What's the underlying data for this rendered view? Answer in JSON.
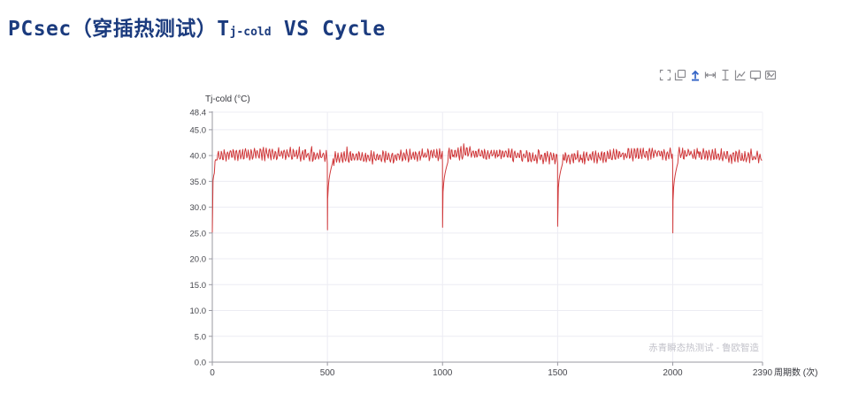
{
  "title": {
    "prefix": "PCsec（穿插热测试）T",
    "subscript": "j-cold",
    "suffix": " VS Cycle",
    "color": "#1b3b7e"
  },
  "toolbar": {
    "icon_color": "#8b8b90",
    "active_color": "#3565c6",
    "icons": [
      {
        "name": "box-select"
      },
      {
        "name": "copy"
      },
      {
        "name": "restore-upload"
      },
      {
        "name": "measure-width"
      },
      {
        "name": "measure-height"
      },
      {
        "name": "line-chart"
      },
      {
        "name": "annotation-box"
      },
      {
        "name": "save-image"
      }
    ]
  },
  "chart_data": {
    "type": "line",
    "title": "",
    "ylabel": "Tj-cold (°C)",
    "xlabel": "周期数 (次)",
    "watermark": "赤青瞬态热测试 - 鲁欧智造",
    "xlim": [
      0,
      2390
    ],
    "ylim": [
      0,
      48.4
    ],
    "x_ticks": [
      0,
      500,
      1000,
      1500,
      2000,
      2390
    ],
    "y_ticks": [
      0,
      5,
      10,
      15,
      20,
      25,
      30,
      35,
      40,
      45,
      48.4
    ],
    "y_tick_labels": [
      "0.0",
      "5.0",
      "10.0",
      "15.0",
      "20.0",
      "25.0",
      "30.0",
      "35.0",
      "40.0",
      "45.0",
      "48.4"
    ],
    "grid": true,
    "legend": false,
    "colors": {
      "grid": "#ececf3",
      "grid_faint": "#f2f2f7",
      "axis": "#9a9aa2",
      "line": "#d0393b"
    },
    "series": [
      {
        "name": "Tj-cold",
        "color": "#d0393b",
        "baseline": 40.0,
        "band": [
          37.9,
          42.3
        ],
        "osc_period": 13,
        "start_value": 25.1,
        "end_x": 2390,
        "seed": 20240613,
        "dips": [
          {
            "x": 500,
            "min": 25.6
          },
          {
            "x": 1000,
            "min": 26.1
          },
          {
            "x": 1500,
            "min": 26.3
          },
          {
            "x": 2000,
            "min": 25.0
          }
        ]
      }
    ]
  }
}
